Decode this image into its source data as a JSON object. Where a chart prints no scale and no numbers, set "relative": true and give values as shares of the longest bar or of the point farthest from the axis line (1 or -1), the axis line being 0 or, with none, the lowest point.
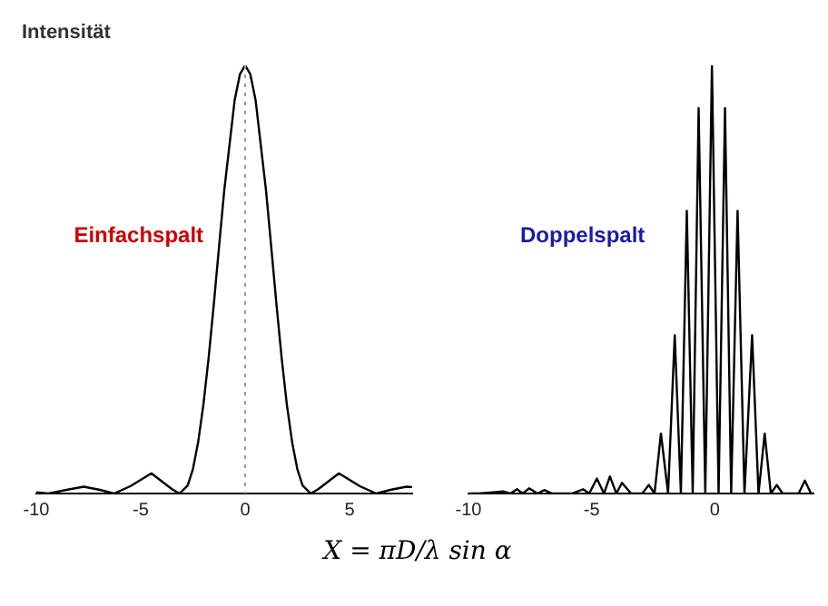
{
  "chart_data": [
    {
      "type": "line",
      "title": "Einfachspalt",
      "ylabel": "Intensität",
      "xlabel": "X = πD/λ sin α",
      "relative": true,
      "color": "#000000",
      "xlim": [
        -10,
        8
      ],
      "xticks": [
        -10,
        -5,
        0,
        5
      ],
      "x": [
        -10,
        -9.42,
        -8.5,
        -7.73,
        -7,
        -6.28,
        -5.5,
        -4.49,
        -3.5,
        -3.14,
        -2.75,
        -2.5,
        -2.25,
        -2,
        -1.75,
        -1.5,
        -1.25,
        -1,
        -0.5,
        -0.25,
        0,
        0.25,
        0.5,
        1,
        1.25,
        1.5,
        1.75,
        2,
        2.25,
        2.5,
        2.75,
        3.14,
        3.5,
        4.49,
        5.5,
        6.28,
        7,
        7.73,
        8
      ],
      "values": [
        0.003,
        0,
        0.009,
        0.016,
        0.009,
        0,
        0.017,
        0.047,
        0.01,
        0,
        0.019,
        0.057,
        0.12,
        0.207,
        0.316,
        0.442,
        0.576,
        0.708,
        0.919,
        0.979,
        1,
        0.979,
        0.919,
        0.708,
        0.576,
        0.442,
        0.316,
        0.207,
        0.12,
        0.057,
        0.019,
        0,
        0.01,
        0.047,
        0.017,
        0,
        0.009,
        0.016,
        0.015
      ],
      "ref_lines": [
        {
          "axis": "x",
          "value": 0,
          "line_style": "dotted",
          "color": "#999999"
        }
      ]
    },
    {
      "type": "line",
      "title": "Doppelspalt",
      "relative": true,
      "color": "#000000",
      "xlim": [
        -10,
        4
      ],
      "xticks": [
        -10,
        -5,
        0
      ],
      "x": [
        -9.9,
        -9.6,
        -9,
        -8.6,
        -8.3,
        -8.03,
        -7.8,
        -7.54,
        -7.2,
        -6.93,
        -6.6,
        -5.8,
        -5.35,
        -5.1,
        -4.79,
        -4.5,
        -4.26,
        -4,
        -3.77,
        -3.4,
        -2.95,
        -2.68,
        -2.45,
        -2.19,
        -1.9,
        -1.63,
        -1.38,
        -1.14,
        -0.9,
        -0.66,
        -0.39,
        -0.12,
        0.15,
        0.41,
        0.66,
        0.92,
        1.2,
        1.51,
        1.77,
        2.02,
        2.27,
        2.51,
        2.75,
        3.4,
        3.65,
        3.9,
        4
      ],
      "values": [
        0,
        0,
        0.003,
        0.005,
        0,
        0.01,
        0,
        0.012,
        0,
        0.008,
        0,
        0,
        0.01,
        0,
        0.035,
        0,
        0.04,
        0,
        0.025,
        0,
        0,
        0.02,
        0,
        0.14,
        0,
        0.37,
        0,
        0.66,
        0,
        0.9,
        0,
        1,
        0,
        0.9,
        0,
        0.66,
        0,
        0.37,
        0,
        0.14,
        0,
        0.02,
        0,
        0,
        0.03,
        0,
        0
      ]
    }
  ]
}
